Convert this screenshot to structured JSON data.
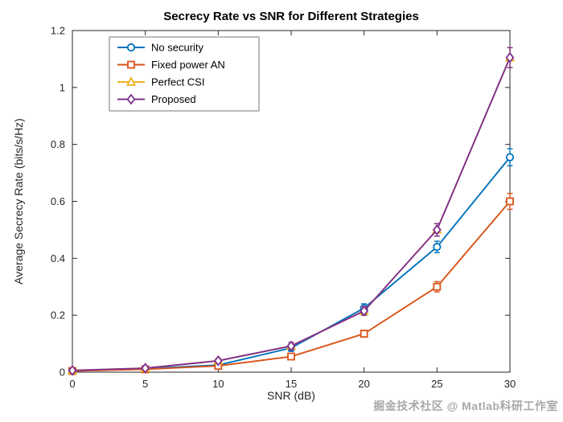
{
  "figure": {
    "background": "#ffffff",
    "axis_color": "#262626",
    "tick_label_color": "#262626",
    "title_color": "#000000",
    "legend_border_color": "#777777"
  },
  "watermark": {
    "text": "掘金技术社区 @ Matlab科研工作室",
    "color": "#a8a8a8"
  },
  "chart_data": {
    "type": "line",
    "title": "Secrecy Rate vs SNR for Different Strategies",
    "xlabel": "SNR (dB)",
    "ylabel": "Average Secrecy Rate (bits/s/Hz)",
    "xlim": [
      0,
      30
    ],
    "ylim": [
      0,
      1.2
    ],
    "xticks": [
      0,
      5,
      10,
      15,
      20,
      25,
      30
    ],
    "yticks": [
      0,
      0.2,
      0.4,
      0.6,
      0.8,
      1.0,
      1.2
    ],
    "grid": false,
    "legend_position": "top-left",
    "error_bars": true,
    "x": [
      0,
      5,
      10,
      15,
      20,
      25,
      30
    ],
    "series": [
      {
        "name": "No security",
        "color": "#0072BD",
        "marker": "circle",
        "values": [
          0.005,
          0.012,
          0.025,
          0.085,
          0.225,
          0.44,
          0.755
        ],
        "errors": [
          0.004,
          0.005,
          0.006,
          0.012,
          0.015,
          0.02,
          0.03
        ]
      },
      {
        "name": "Fixed power AN",
        "color": "#D95319",
        "marker": "square",
        "values": [
          0.004,
          0.01,
          0.022,
          0.055,
          0.135,
          0.3,
          0.6
        ],
        "errors": [
          0.003,
          0.004,
          0.005,
          0.01,
          0.012,
          0.018,
          0.028
        ]
      },
      {
        "name": "Perfect CSI",
        "color": "#EDB120",
        "marker": "triangle",
        "values": [
          0.006,
          0.014,
          0.04,
          0.092,
          0.215,
          0.5,
          1.105
        ],
        "errors": [
          0.004,
          0.005,
          0.008,
          0.012,
          0.015,
          0.022,
          0.035
        ]
      },
      {
        "name": "Proposed",
        "color": "#7E2F8E",
        "marker": "diamond",
        "values": [
          0.006,
          0.014,
          0.04,
          0.092,
          0.215,
          0.5,
          1.105
        ],
        "errors": [
          0.004,
          0.005,
          0.008,
          0.012,
          0.015,
          0.022,
          0.035
        ]
      }
    ]
  }
}
